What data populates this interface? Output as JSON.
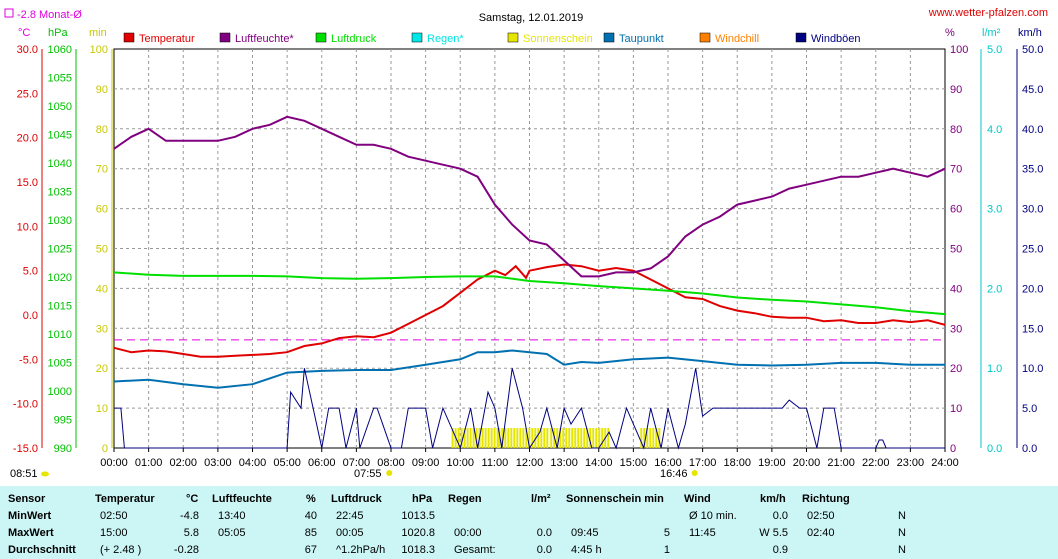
{
  "title": "Samstag, 12.01.2019",
  "site": "www.wetter-pfalzen.com",
  "monthly_avg": "-2.8 Monat-Ø",
  "unit_labels": {
    "celsius": "°C",
    "hpa": "hPa",
    "min": "min",
    "percent": "%",
    "lm2": "l/m²",
    "kmh": "km/h"
  },
  "legend": [
    {
      "name": "Temperatur",
      "color": "#e00000"
    },
    {
      "name": "Luftfeuchte*",
      "color": "#800080"
    },
    {
      "name": "Luftdruck",
      "color": "#00e000"
    },
    {
      "name": "Regen*",
      "color": "#00e5e5"
    },
    {
      "name": "Sonnenschein",
      "color": "#e5e500"
    },
    {
      "name": "Taupunkt",
      "color": "#0070b0"
    },
    {
      "name": "Windchill",
      "color": "#ff8000"
    },
    {
      "name": "Windböen",
      "color": "#000080"
    }
  ],
  "sunrise": "08:51",
  "sunset_markers": [
    "07:55",
    "16:46"
  ],
  "chart_data": {
    "type": "line",
    "x_ticks": [
      "00:00",
      "01:00",
      "02:00",
      "03:00",
      "04:00",
      "05:00",
      "06:00",
      "07:00",
      "08:00",
      "09:00",
      "10:00",
      "11:00",
      "12:00",
      "13:00",
      "14:00",
      "15:00",
      "16:00",
      "17:00",
      "18:00",
      "19:00",
      "20:00",
      "21:00",
      "22:00",
      "23:00",
      "24:00"
    ],
    "axes": {
      "temperature": {
        "label": "°C",
        "ticks": [
          "30.0",
          "25.0",
          "20.0",
          "15.0",
          "10.0",
          "5.0",
          "0.0",
          "-5.0",
          "-10.0",
          "-15.0"
        ],
        "ylim": [
          -15,
          30
        ]
      },
      "pressure": {
        "label": "hPa",
        "ticks": [
          "1060",
          "1055",
          "1050",
          "1045",
          "1040",
          "1035",
          "1030",
          "1025",
          "1020",
          "1015",
          "1010",
          "1005",
          "1000",
          "995",
          "990"
        ],
        "ylim": [
          990,
          1060
        ]
      },
      "sunshine": {
        "label": "min",
        "ticks": [
          "100",
          "90",
          "80",
          "70",
          "60",
          "50",
          "40",
          "30",
          "20",
          "10",
          "0"
        ],
        "ylim": [
          0,
          100
        ]
      },
      "humidity": {
        "label": "%",
        "ticks": [
          "100",
          "90",
          "80",
          "70",
          "60",
          "50",
          "40",
          "30",
          "20",
          "10",
          "0"
        ],
        "ylim": [
          0,
          100
        ]
      },
      "rain": {
        "label": "l/m²",
        "ticks": [
          "5.0",
          "4.0",
          "3.0",
          "2.0",
          "1.0",
          "0.0"
        ],
        "ylim": [
          0,
          5
        ]
      },
      "wind": {
        "label": "km/h",
        "ticks": [
          "50.0",
          "45.0",
          "40.0",
          "35.0",
          "30.0",
          "25.0",
          "20.0",
          "15.0",
          "10.0",
          "5.0",
          "0.0"
        ],
        "ylim": [
          0,
          50
        ]
      }
    },
    "monthly_avg_temp": -2.8,
    "series": [
      {
        "name": "Temperatur",
        "axis": "temperature",
        "x": [
          0,
          0.5,
          1,
          1.5,
          2,
          2.5,
          3,
          3.5,
          4,
          4.5,
          5,
          5.5,
          6,
          6.5,
          7,
          7.5,
          8,
          8.5,
          9,
          9.5,
          10,
          10.5,
          11,
          11.3,
          11.6,
          11.9,
          12,
          12.5,
          13,
          13.5,
          14,
          14.5,
          15,
          15.5,
          16,
          16.5,
          17,
          17.5,
          18,
          18.5,
          19,
          19.5,
          20,
          20.5,
          21,
          21.5,
          22,
          22.5,
          23,
          23.5,
          24
        ],
        "values": [
          -3.7,
          -4.2,
          -4.0,
          -4.1,
          -4.4,
          -4.7,
          -4.7,
          -4.6,
          -4.5,
          -4.4,
          -4.2,
          -3.5,
          -3.2,
          -2.6,
          -2.4,
          -2.5,
          -2.0,
          -1.0,
          0.0,
          1.0,
          2.5,
          4.0,
          5.0,
          4.5,
          5.5,
          4.2,
          5.0,
          5.4,
          5.7,
          5.5,
          5.0,
          5.3,
          5.0,
          4.0,
          3.0,
          2.0,
          1.8,
          1.0,
          0.5,
          0.2,
          -0.2,
          -0.3,
          -0.3,
          -0.7,
          -0.6,
          -0.9,
          -0.9,
          -0.6,
          -0.8,
          -0.6,
          -1.1
        ]
      },
      {
        "name": "Luftfeuchte*",
        "axis": "humidity",
        "x": [
          0,
          0.5,
          1,
          1.5,
          2,
          2.5,
          3,
          3.5,
          4,
          4.5,
          5,
          5.5,
          6,
          6.5,
          7,
          7.5,
          8,
          8.5,
          9,
          9.5,
          10,
          10.5,
          11,
          11.5,
          12,
          12.5,
          13,
          13.5,
          14,
          14.5,
          15,
          15.5,
          16,
          16.5,
          17,
          17.5,
          18,
          18.5,
          19,
          19.5,
          20,
          20.5,
          21,
          21.5,
          22,
          22.5,
          23,
          23.5,
          24
        ],
        "values": [
          75,
          78,
          80,
          77,
          77,
          77,
          77,
          78,
          80,
          81,
          83,
          82,
          80,
          78,
          76,
          76,
          75,
          73,
          72,
          71,
          70,
          68,
          61,
          56,
          52,
          51,
          47,
          43,
          43,
          44,
          44,
          45,
          48,
          53,
          56,
          58,
          61,
          62,
          63,
          65,
          66,
          67,
          68,
          68,
          69,
          70,
          69,
          68,
          70
        ]
      },
      {
        "name": "Luftdruck",
        "axis": "pressure",
        "x": [
          0,
          1,
          2,
          3,
          4,
          5,
          6,
          7,
          8,
          9,
          10,
          11,
          12,
          13,
          14,
          15,
          16,
          17,
          18,
          19,
          20,
          21,
          22,
          23,
          24
        ],
        "values": [
          1020.8,
          1020.4,
          1020.2,
          1020.2,
          1020.2,
          1020.1,
          1019.8,
          1019.7,
          1019.8,
          1020.0,
          1020.1,
          1020.1,
          1019.3,
          1018.9,
          1018.4,
          1018.0,
          1017.6,
          1017.1,
          1016.4,
          1016.0,
          1015.7,
          1015.2,
          1014.7,
          1014.0,
          1013.5
        ]
      },
      {
        "name": "Taupunkt",
        "axis": "temperature",
        "x": [
          0,
          1,
          2,
          3,
          4,
          5,
          6,
          7,
          8,
          9,
          10,
          10.5,
          11,
          11.5,
          12,
          12.5,
          13,
          13.5,
          14,
          15,
          16,
          17,
          18,
          19,
          20,
          21,
          22,
          23,
          24
        ],
        "values": [
          -7.5,
          -7.3,
          -7.8,
          -8.2,
          -7.8,
          -6.5,
          -6.3,
          -6.2,
          -6.2,
          -5.6,
          -5.0,
          -4.2,
          -4.2,
          -4.0,
          -4.2,
          -4.4,
          -5.6,
          -5.3,
          -5.4,
          -5.0,
          -4.8,
          -5.2,
          -5.6,
          -5.7,
          -5.6,
          -5.4,
          -5.4,
          -5.6,
          -5.6
        ]
      },
      {
        "name": "Windböen",
        "axis": "wind",
        "x": [
          0,
          0.2,
          0.3,
          5,
          5.1,
          5.4,
          5.5,
          6,
          6.2,
          6.5,
          6.7,
          7,
          7.1,
          7.5,
          7.6,
          8,
          8.3,
          8.5,
          9,
          9.2,
          9.5,
          10,
          10.3,
          10.5,
          10.8,
          11,
          11.2,
          11.5,
          11.8,
          12,
          12.3,
          12.5,
          12.8,
          13,
          13.2,
          13.5,
          13.8,
          14,
          14.3,
          14.5,
          14.8,
          15,
          15.3,
          15.5,
          15.8,
          16,
          16.3,
          16.5,
          16.8,
          17,
          17.3,
          17.5,
          17.8,
          18,
          18.5,
          19,
          19.3,
          19.5,
          19.8,
          20,
          20.3,
          20.5,
          20.8,
          21,
          22,
          22.1,
          22.2,
          22.3,
          24
        ],
        "values": [
          5,
          5,
          0,
          0,
          7,
          5,
          10,
          0,
          5,
          5,
          0,
          5,
          0,
          5,
          5,
          0,
          0,
          5,
          5,
          0,
          5,
          0,
          5,
          0,
          7,
          5,
          0,
          10,
          5,
          0,
          2,
          5,
          0,
          5,
          3,
          5,
          0,
          0,
          2,
          0,
          5,
          3,
          0,
          5,
          0,
          5,
          0,
          3,
          10,
          4,
          5,
          5,
          5,
          5,
          5,
          5,
          5,
          6,
          5,
          5,
          0,
          5,
          5,
          0,
          0,
          1,
          1,
          0,
          0
        ]
      }
    ],
    "sunshine_intervals": [
      [
        9.75,
        11.1
      ],
      [
        11.1,
        12.5
      ],
      [
        12.6,
        14.3
      ],
      [
        15.2,
        15.8
      ]
    ]
  },
  "stats_table": {
    "headers": [
      "Sensor",
      "Temperatur",
      "°C",
      "Luftfeuchte",
      "%",
      "Luftdruck",
      "hPa",
      "Regen",
      "l/m²",
      "Sonnenschein min",
      "Wind",
      "km/h",
      "Richtung"
    ],
    "rows": [
      {
        "label": "MinWert",
        "temp_time": "02:50",
        "temp_val": "-4.8",
        "hum_time": "13:40",
        "hum_val": "40",
        "press_time": "22:45",
        "press_val": "1013.5",
        "rain_time": "",
        "rain_val": "",
        "sun_time": "",
        "sun_val": "",
        "wind_time": "Ø 10 min.",
        "wind_val": "0.0",
        "dir_time": "02:50",
        "dir_val": "N"
      },
      {
        "label": "MaxWert",
        "temp_time": "15:00",
        "temp_val": "5.8",
        "hum_time": "05:05",
        "hum_val": "85",
        "press_time": "00:05",
        "press_val": "1020.8",
        "rain_time": "00:00",
        "rain_val": "0.0",
        "sun_time": "09:45",
        "sun_val": "5",
        "wind_time": "11:45",
        "wind_val": "W 5.5",
        "dir_time": "02:40",
        "dir_val": "N"
      },
      {
        "label": "Durchschnitt",
        "temp_time": "(+ 2.48 )",
        "temp_val": "-0.28",
        "hum_time": "",
        "hum_val": "67",
        "press_time": "^1.2hPa/h",
        "press_val": "1018.3",
        "rain_time": "Gesamt:",
        "rain_val": "0.0",
        "sun_time": "4:45 h",
        "sun_val": "1",
        "wind_time": "",
        "wind_val": "0.9",
        "dir_time": "",
        "dir_val": "N"
      }
    ]
  }
}
